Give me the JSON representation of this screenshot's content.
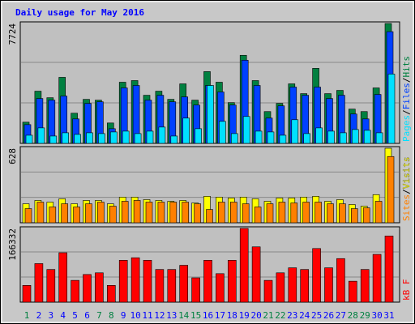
{
  "chart_data": [
    {
      "type": "bar",
      "title": "Daily usage for May 2016",
      "ylim": [
        0,
        7724
      ],
      "yticks": [
        7724
      ],
      "legend_separator": "/",
      "series": [
        {
          "name": "Hits",
          "color": "#008040",
          "values": [
            1366,
            3363,
            2942,
            4256,
            1944,
            2837,
            2785,
            1314,
            3941,
            4046,
            3100,
            3363,
            2837,
            3836,
            2785,
            4624,
            3941,
            2627,
            5675,
            4046,
            2049,
            2575,
            3836,
            3205,
            4834,
            3205,
            3415,
            2207,
            2049,
            3573,
            7724
          ]
        },
        {
          "name": "Files",
          "color": "#0040ff",
          "values": [
            1208,
            2890,
            2785,
            3048,
            1576,
            2575,
            2680,
            946,
            3573,
            3731,
            2785,
            3100,
            2680,
            2995,
            2470,
            3731,
            3310,
            2470,
            5360,
            3731,
            1629,
            2417,
            3626,
            3100,
            3626,
            2890,
            3100,
            1892,
            1576,
            3153,
            7199
          ]
        },
        {
          "name": "Pages",
          "color": "#00e0ff",
          "values": [
            525,
            998,
            473,
            683,
            578,
            683,
            631,
            736,
            788,
            631,
            788,
            1051,
            473,
            1629,
            946,
            3731,
            1419,
            631,
            1734,
            788,
            736,
            525,
            1524,
            631,
            998,
            788,
            683,
            893,
            841,
            683,
            4466
          ]
        }
      ]
    },
    {
      "type": "bar",
      "ylim": [
        0,
        628
      ],
      "yticks": [
        628
      ],
      "legend_separator": "/",
      "series": [
        {
          "name": "Visits",
          "color": "#ffff00",
          "values": [
            160,
            188,
            174,
            202,
            160,
            188,
            188,
            160,
            216,
            216,
            195,
            188,
            181,
            188,
            167,
            223,
            216,
            209,
            216,
            202,
            181,
            209,
            209,
            216,
            223,
            181,
            195,
            154,
            140,
            237,
            628
          ]
        },
        {
          "name": "Sites",
          "color": "#ff8000",
          "values": [
            119,
            174,
            133,
            160,
            133,
            160,
            174,
            140,
            181,
            188,
            174,
            174,
            174,
            174,
            160,
            112,
            174,
            174,
            160,
            133,
            160,
            174,
            167,
            174,
            174,
            160,
            160,
            119,
            126,
            181,
            558
          ]
        }
      ]
    },
    {
      "type": "bar",
      "ylim": [
        0,
        166332
      ],
      "yticks": [
        166332
      ],
      "categories": [
        "1",
        "2",
        "3",
        "4",
        "5",
        "6",
        "7",
        "8",
        "9",
        "10",
        "11",
        "12",
        "13",
        "14",
        "15",
        "16",
        "17",
        "18",
        "19",
        "20",
        "21",
        "22",
        "23",
        "24",
        "25",
        "26",
        "27",
        "28",
        "29",
        "30",
        "31"
      ],
      "category_colors": [
        "#008040",
        "#0000ff",
        "#0000ff",
        "#0000ff",
        "#0000ff",
        "#0000ff",
        "#008040",
        "#008040",
        "#0000ff",
        "#0000ff",
        "#0000ff",
        "#0000ff",
        "#0000ff",
        "#008040",
        "#008040",
        "#0000ff",
        "#0000ff",
        "#0000ff",
        "#0000ff",
        "#0000ff",
        "#008040",
        "#008040",
        "#0000ff",
        "#0000ff",
        "#0000ff",
        "#0000ff",
        "#0000ff",
        "#008040",
        "#008040",
        "#0000ff",
        "#0000ff"
      ],
      "series": [
        {
          "name": "kB F",
          "color": "#ff0000",
          "values": [
            37800,
            86940,
            73710,
            111510,
            49140,
            62370,
            66150,
            37800,
            94500,
            100170,
            94500,
            73710,
            73710,
            83160,
            54810,
            94500,
            64260,
            94500,
            166332,
            124740,
            49140,
            66150,
            77490,
            73710,
            120960,
            77490,
            98280,
            47250,
            73710,
            107730,
            149310
          ]
        }
      ]
    }
  ]
}
